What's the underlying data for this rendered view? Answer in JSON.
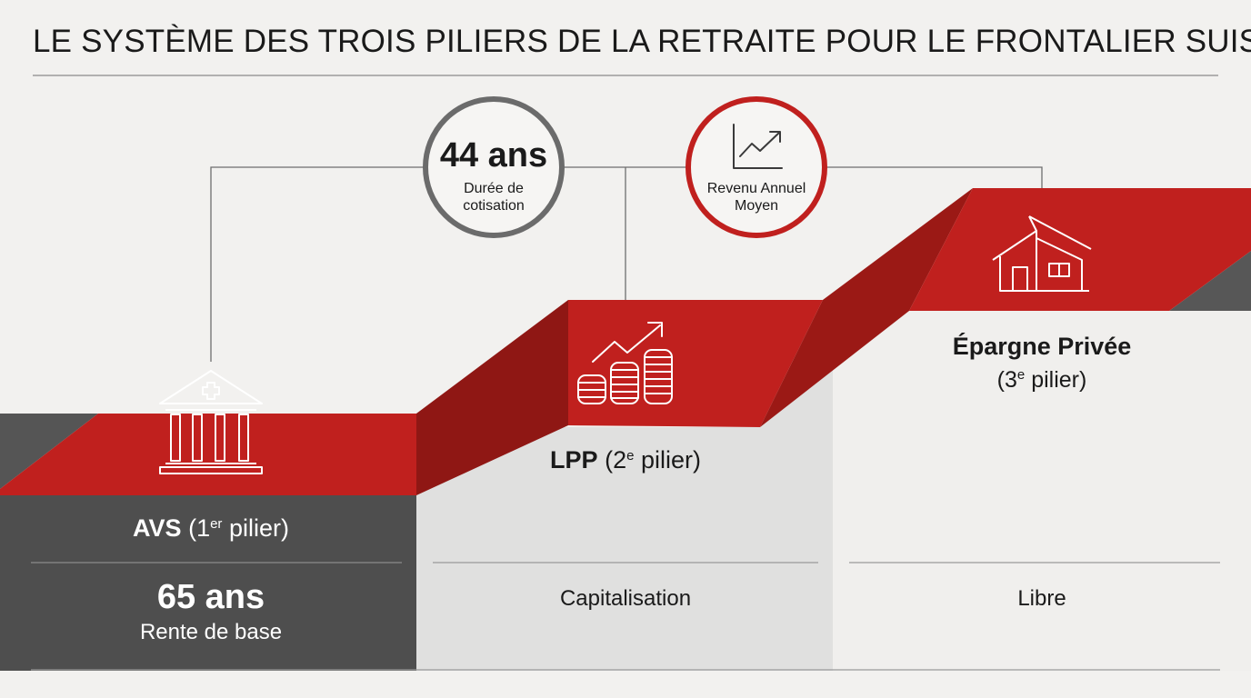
{
  "title": "LE SYSTÈME DES TROIS PILIERS DE LA RETRAITE POUR LE FRONTALIER SUISSE",
  "colors": {
    "red": "#c0201e",
    "red_dark": "#8f1714",
    "charcoal": "#4e4e4e",
    "light_gray": "#e0e0df",
    "background": "#f2f1ef"
  },
  "circles": {
    "duration": {
      "value": "44 ans",
      "label_line1": "Durée de",
      "label_line2": "cotisation",
      "ring_color": "#6b6b6b"
    },
    "income": {
      "label_line1": "Revenu Annuel",
      "label_line2": "Moyen",
      "icon": "trend-chart-icon",
      "ring_color": "#c0201e"
    }
  },
  "pillars": [
    {
      "id": "avs",
      "name": "AVS",
      "qualifier_open": "(1",
      "qualifier_sup": "er",
      "qualifier_close": " pilier)",
      "icon": "bank-cross-icon",
      "value": "65 ans",
      "detail": "Rente de base"
    },
    {
      "id": "lpp",
      "name": "LPP",
      "qualifier_open": "(2",
      "qualifier_sup": "e",
      "qualifier_close": " pilier)",
      "icon": "coins-growth-icon",
      "detail": "Capitalisation"
    },
    {
      "id": "epargne",
      "name": "Épargne Privée",
      "qualifier_open": "(3",
      "qualifier_sup": "e",
      "qualifier_close": " pilier)",
      "icon": "house-icon",
      "detail": "Libre"
    }
  ]
}
